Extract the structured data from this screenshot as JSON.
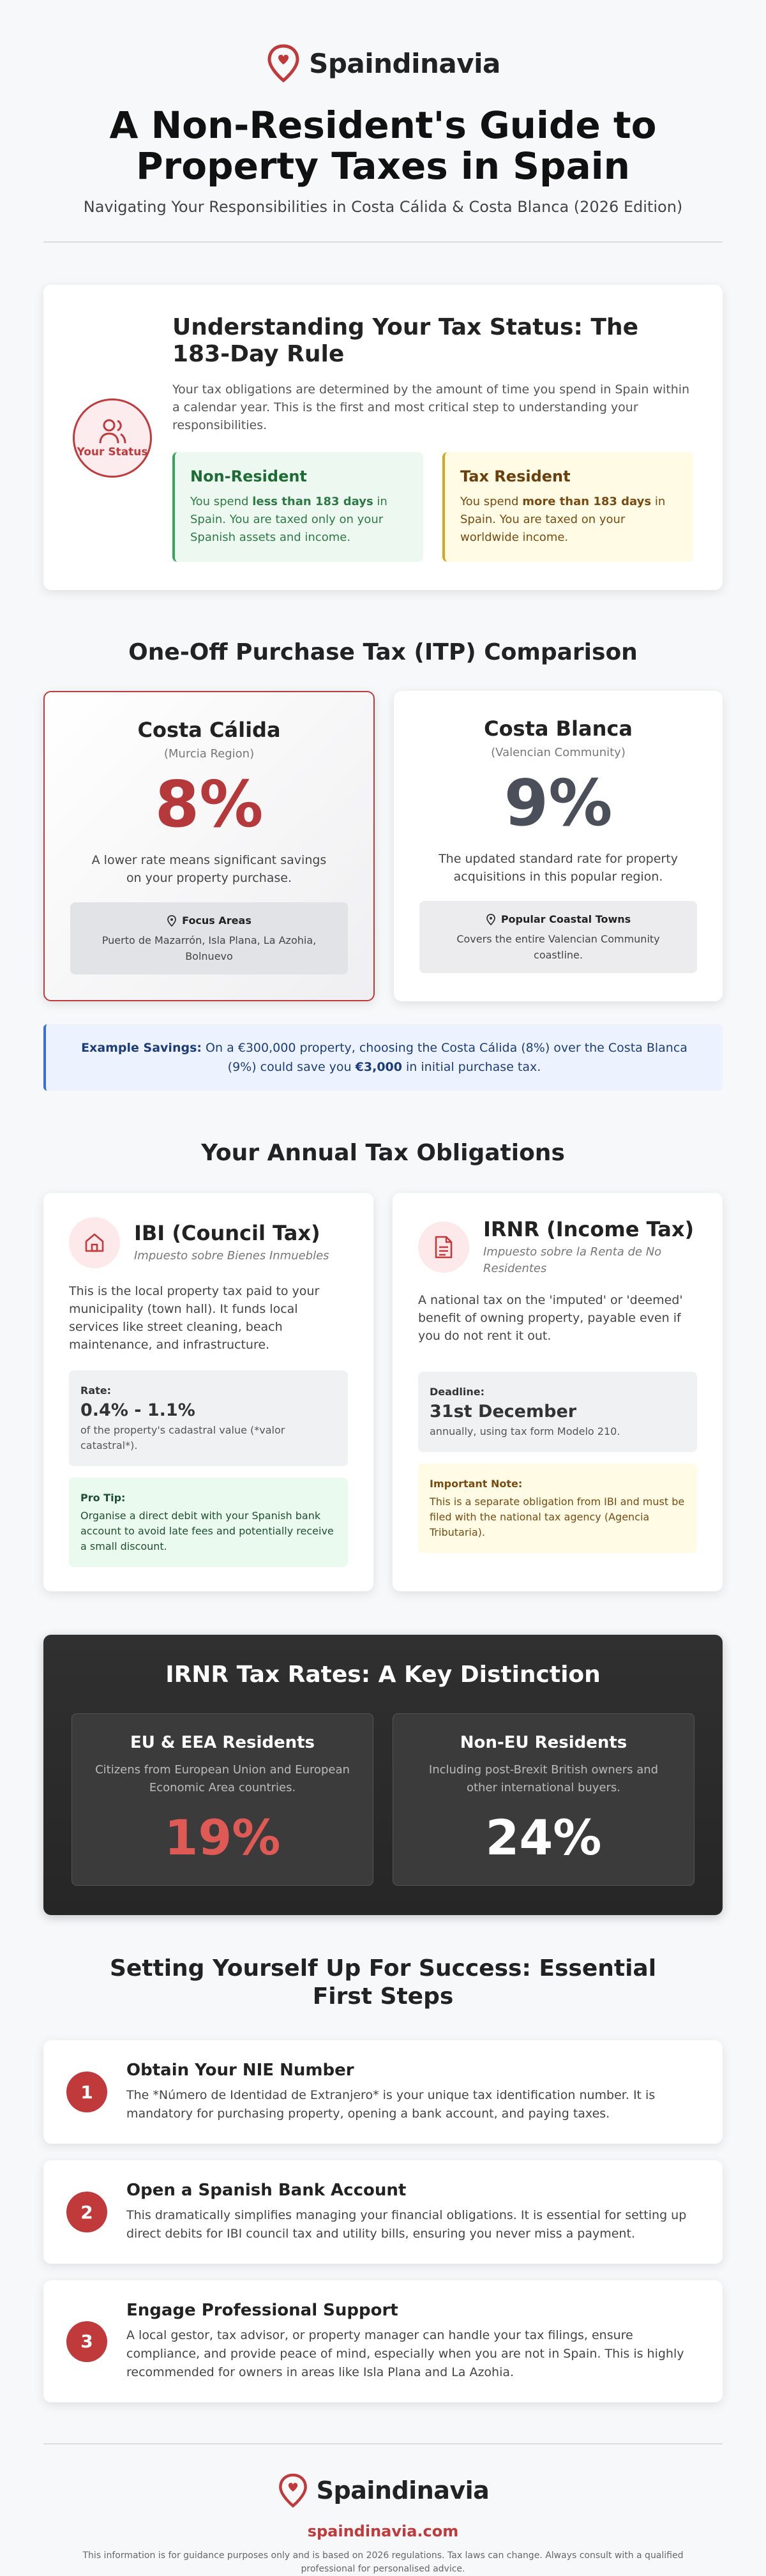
{
  "header": {
    "brand": "Spaindinavia",
    "title_lines": [
      "A Non-Resident's Guide to",
      "Property Taxes in Spain"
    ],
    "subtitle": "Navigating Your Responsibilities in Costa Cálida & Costa Blanca (2026 Edition)"
  },
  "status": {
    "badge": "Your Status",
    "title": "Understanding Your Tax Status: The 183-Day Rule",
    "text": "Your tax obligations are determined by the amount of time you spend in Spain within a calendar year. This is the first and most critical step to understanding your responsibilities.",
    "cards": [
      {
        "title": "Non-Resident",
        "before": "You spend",
        "bold": "less than 183 days",
        "after": "in Spain. You are taxed only on your Spanish assets and income."
      },
      {
        "title": "Tax Resident",
        "before": "You spend",
        "bold": "more than 183 days",
        "after": "in Spain. You are taxed on your worldwide income."
      }
    ]
  },
  "itp": {
    "heading": "One-Off Purchase Tax (ITP) Comparison",
    "regions": [
      {
        "name": "Costa Cálida",
        "region": "(Murcia Region)",
        "rate": "8%",
        "text": "A lower rate means significant savings on your property purchase.",
        "box_title": "Focus Areas",
        "box_text": "Puerto de Mazarrón, Isla Plana, La Azohia, Bolnuevo"
      },
      {
        "name": "Costa Blanca",
        "region": "(Valencian Community)",
        "rate": "9%",
        "text": "The updated standard rate for property acquisitions in this popular region.",
        "box_title": "Popular Coastal Towns",
        "box_text": "Covers the entire Valencian Community coastline."
      }
    ],
    "savings": {
      "label": "Example Savings:",
      "before": "On a €300,000 property, choosing the Costa Cálida (8%) over the Costa Blanca (9%) could save you",
      "bold": "€3,000",
      "after": "in initial purchase tax."
    }
  },
  "annual": {
    "heading": "Your Annual Tax Obligations",
    "cards": [
      {
        "title": "IBI (Council Tax)",
        "subtitle": "Impuesto sobre Bienes Inmuebles",
        "text": "This is the local property tax paid to your municipality (town hall). It funds local services like street cleaning, beach maintenance, and infrastructure.",
        "box_label": "Rate:",
        "box_value": "0.4% - 1.1%",
        "box_note": "of the property's cadastral value (*valor catastral*).",
        "tip_label": "Pro Tip:",
        "tip_text": "Organise a direct debit with your Spanish bank account to avoid late fees and potentially receive a small discount."
      },
      {
        "title": "IRNR (Income Tax)",
        "subtitle": "Impuesto sobre la Renta de No Residentes",
        "text": "A national tax on the 'imputed' or 'deemed' benefit of owning property, payable even if you do not rent it out.",
        "box_label": "Deadline:",
        "box_value": "31st December",
        "box_note": "annually, using tax form Modelo 210.",
        "tip_label": "Important Note:",
        "tip_text": "This is a separate obligation from IBI and must be filed with the national tax agency (Agencia Tributaria)."
      }
    ]
  },
  "irnr_rates": {
    "heading": "IRNR Tax Rates: A Key Distinction",
    "groups": [
      {
        "title": "EU & EEA Residents",
        "text": "Citizens from European Union and European Economic Area countries.",
        "rate": "19%"
      },
      {
        "title": "Non-EU Residents",
        "text": "Including post-Brexit British owners and other international buyers.",
        "rate": "24%"
      }
    ]
  },
  "steps": {
    "heading": "Setting Yourself Up For Success: Essential First Steps",
    "items": [
      {
        "number": "1",
        "title": "Obtain Your NIE Number",
        "text": "The *Número de Identidad de Extranjero* is your unique tax identification number. It is mandatory for purchasing property, opening a bank account, and paying taxes."
      },
      {
        "number": "2",
        "title": "Open a Spanish Bank Account",
        "text": "This dramatically simplifies managing your financial obligations. It is essential for setting up direct debits for IBI council tax and utility bills, ensuring you never miss a payment."
      },
      {
        "number": "3",
        "title": "Engage Professional Support",
        "text": "A local gestor, tax advisor, or property manager can handle your tax filings, ensure compliance, and provide peace of mind, especially when you are not in Spain. This is highly recommended for owners in areas like Isla Plana and La Azohia."
      }
    ]
  },
  "footer": {
    "brand": "Spaindinavia",
    "link": "spaindinavia.com",
    "disclaimer": "This information is for guidance purposes only and is based on 2026 regulations. Tax laws can change. Always consult with a qualified professional for personalised advice."
  }
}
